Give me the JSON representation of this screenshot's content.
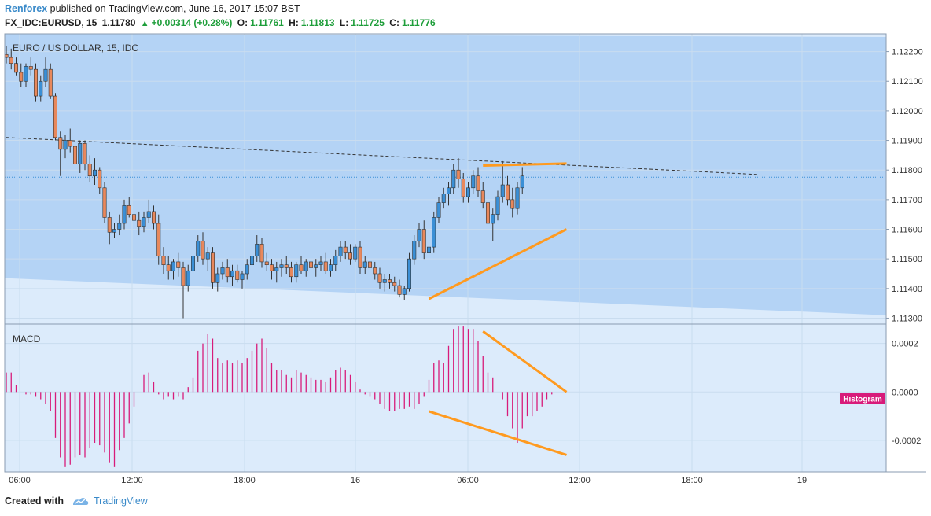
{
  "header": {
    "username": "Renforex",
    "published_text": "published on TradingView.com, June 16, 2017 15:07 BST",
    "symbol": "FX_IDC:EURUSD, 15",
    "last": "1.11780",
    "change": "+0.00314 (+0.28%)",
    "open_label": "O:",
    "open": "1.11761",
    "high_label": "H:",
    "high": "1.11813",
    "low_label": "L:",
    "low": "1.11725",
    "close_label": "C:",
    "close": "1.11776"
  },
  "footer": {
    "created_with": "Created with",
    "brand": "TradingView"
  },
  "colors": {
    "up_candle": "#3a8fd6",
    "down_candle": "#e8885c",
    "wick": "#333333",
    "histogram": "#d81b7a",
    "trendline": "#ff9a1f",
    "channel_fill": "#b4d3f5",
    "background": "#dcebfb"
  },
  "chart_data": [
    {
      "type": "candlestick",
      "title": "EURO / US DOLLAR, 15, IDC",
      "y_axis_ticks": [
        "1.12200",
        "1.12100",
        "1.12000",
        "1.11900",
        "1.11800",
        "1.11700",
        "1.11600",
        "1.11500",
        "1.11400",
        "1.11300"
      ],
      "ylim": [
        1.1128,
        1.1226
      ],
      "x_axis_ticks": [
        "06:00",
        "12:00",
        "18:00",
        "16",
        "06:00",
        "12:00",
        "18:00",
        "19"
      ],
      "current_price": 1.11776,
      "candles": [
        [
          1.1219,
          1.1222,
          1.1216,
          1.1218
        ],
        [
          1.1218,
          1.1221,
          1.1214,
          1.1216
        ],
        [
          1.1216,
          1.1218,
          1.1212,
          1.1213
        ],
        [
          1.1213,
          1.1216,
          1.1208,
          1.121
        ],
        [
          1.121,
          1.1216,
          1.1208,
          1.1215
        ],
        [
          1.1215,
          1.1218,
          1.1212,
          1.1214
        ],
        [
          1.1214,
          1.1216,
          1.1203,
          1.1205
        ],
        [
          1.1205,
          1.1212,
          1.1203,
          1.121
        ],
        [
          1.121,
          1.1218,
          1.1208,
          1.1214
        ],
        [
          1.1214,
          1.1216,
          1.1204,
          1.1205
        ],
        [
          1.1205,
          1.1206,
          1.119,
          1.1191
        ],
        [
          1.1191,
          1.1193,
          1.1178,
          1.1187
        ],
        [
          1.1187,
          1.1192,
          1.1184,
          1.119
        ],
        [
          1.119,
          1.1194,
          1.1186,
          1.1188
        ],
        [
          1.1188,
          1.1192,
          1.118,
          1.1182
        ],
        [
          1.1182,
          1.119,
          1.1179,
          1.1189
        ],
        [
          1.1189,
          1.119,
          1.118,
          1.1182
        ],
        [
          1.1182,
          1.1185,
          1.1176,
          1.1178
        ],
        [
          1.1178,
          1.1184,
          1.1175,
          1.118
        ],
        [
          1.118,
          1.1181,
          1.1172,
          1.1174
        ],
        [
          1.1174,
          1.1176,
          1.1162,
          1.1164
        ],
        [
          1.1164,
          1.1166,
          1.1155,
          1.1159
        ],
        [
          1.1159,
          1.1162,
          1.1157,
          1.116
        ],
        [
          1.116,
          1.1165,
          1.1158,
          1.1162
        ],
        [
          1.1162,
          1.117,
          1.116,
          1.1168
        ],
        [
          1.1168,
          1.1171,
          1.1164,
          1.1165
        ],
        [
          1.1165,
          1.1167,
          1.116,
          1.1163
        ],
        [
          1.1163,
          1.1166,
          1.1158,
          1.1161
        ],
        [
          1.1161,
          1.1166,
          1.1159,
          1.1164
        ],
        [
          1.1164,
          1.117,
          1.1162,
          1.1166
        ],
        [
          1.1166,
          1.1168,
          1.116,
          1.1162
        ],
        [
          1.1162,
          1.1165,
          1.1148,
          1.1151
        ],
        [
          1.1151,
          1.1154,
          1.1145,
          1.1148
        ],
        [
          1.1148,
          1.1151,
          1.1143,
          1.1146
        ],
        [
          1.1146,
          1.115,
          1.1143,
          1.1149
        ],
        [
          1.1149,
          1.1152,
          1.1144,
          1.1147
        ],
        [
          1.1147,
          1.1149,
          1.113,
          1.1141
        ],
        [
          1.1141,
          1.1148,
          1.1139,
          1.1146
        ],
        [
          1.1146,
          1.1153,
          1.1144,
          1.1151
        ],
        [
          1.1151,
          1.1158,
          1.1149,
          1.1156
        ],
        [
          1.1156,
          1.1159,
          1.1148,
          1.115
        ],
        [
          1.115,
          1.1154,
          1.1146,
          1.1152
        ],
        [
          1.1152,
          1.1154,
          1.114,
          1.1142
        ],
        [
          1.1142,
          1.1147,
          1.1139,
          1.1145
        ],
        [
          1.1145,
          1.1149,
          1.1143,
          1.1147
        ],
        [
          1.1147,
          1.115,
          1.1142,
          1.1144
        ],
        [
          1.1144,
          1.1148,
          1.1141,
          1.1146
        ],
        [
          1.1146,
          1.1148,
          1.1142,
          1.1143
        ],
        [
          1.1143,
          1.1146,
          1.114,
          1.1145
        ],
        [
          1.1145,
          1.115,
          1.1143,
          1.1148
        ],
        [
          1.1148,
          1.1153,
          1.1146,
          1.1151
        ],
        [
          1.1151,
          1.1158,
          1.1149,
          1.1155
        ],
        [
          1.1155,
          1.1157,
          1.1147,
          1.1149
        ],
        [
          1.1149,
          1.1152,
          1.1146,
          1.1148
        ],
        [
          1.1148,
          1.115,
          1.1143,
          1.1146
        ],
        [
          1.1146,
          1.1149,
          1.1142,
          1.1147
        ],
        [
          1.1147,
          1.115,
          1.1144,
          1.1148
        ],
        [
          1.1148,
          1.1151,
          1.1145,
          1.1147
        ],
        [
          1.1147,
          1.1149,
          1.1142,
          1.1144
        ],
        [
          1.1144,
          1.1149,
          1.1142,
          1.1148
        ],
        [
          1.1148,
          1.1151,
          1.1145,
          1.1146
        ],
        [
          1.1146,
          1.115,
          1.1144,
          1.1149
        ],
        [
          1.1149,
          1.1152,
          1.1146,
          1.1147
        ],
        [
          1.1147,
          1.115,
          1.1144,
          1.1148
        ],
        [
          1.1148,
          1.1151,
          1.1146,
          1.1149
        ],
        [
          1.1149,
          1.1152,
          1.1145,
          1.1146
        ],
        [
          1.1146,
          1.115,
          1.1144,
          1.1148
        ],
        [
          1.1148,
          1.1153,
          1.1146,
          1.1151
        ],
        [
          1.1151,
          1.1156,
          1.1149,
          1.1154
        ],
        [
          1.1154,
          1.1156,
          1.115,
          1.1152
        ],
        [
          1.1152,
          1.1155,
          1.1148,
          1.115
        ],
        [
          1.115,
          1.1155,
          1.1149,
          1.1154
        ],
        [
          1.1154,
          1.1156,
          1.1145,
          1.1147
        ],
        [
          1.1147,
          1.1151,
          1.1145,
          1.1149
        ],
        [
          1.1149,
          1.1152,
          1.1145,
          1.1147
        ],
        [
          1.1147,
          1.1149,
          1.1143,
          1.1145
        ],
        [
          1.1145,
          1.1147,
          1.114,
          1.1142
        ],
        [
          1.1142,
          1.1145,
          1.1139,
          1.1143
        ],
        [
          1.1143,
          1.1145,
          1.114,
          1.1142
        ],
        [
          1.1142,
          1.1144,
          1.1139,
          1.1141
        ],
        [
          1.1141,
          1.1143,
          1.1137,
          1.1138
        ],
        [
          1.1138,
          1.1141,
          1.1136,
          1.114
        ],
        [
          1.114,
          1.1152,
          1.1139,
          1.115
        ],
        [
          1.115,
          1.1158,
          1.1148,
          1.1156
        ],
        [
          1.1156,
          1.1162,
          1.1154,
          1.116
        ],
        [
          1.116,
          1.1163,
          1.115,
          1.1152
        ],
        [
          1.1152,
          1.1156,
          1.115,
          1.1154
        ],
        [
          1.1154,
          1.1166,
          1.1152,
          1.1164
        ],
        [
          1.1164,
          1.1171,
          1.1162,
          1.1169
        ],
        [
          1.1169,
          1.1174,
          1.1167,
          1.1172
        ],
        [
          1.1172,
          1.1176,
          1.1168,
          1.1174
        ],
        [
          1.1174,
          1.1182,
          1.1172,
          1.118
        ],
        [
          1.118,
          1.1184,
          1.1174,
          1.1177
        ],
        [
          1.1177,
          1.1179,
          1.1169,
          1.1171
        ],
        [
          1.1171,
          1.1176,
          1.1169,
          1.1174
        ],
        [
          1.1174,
          1.118,
          1.1172,
          1.1178
        ],
        [
          1.1178,
          1.1181,
          1.1171,
          1.1173
        ],
        [
          1.1173,
          1.1176,
          1.1167,
          1.1169
        ],
        [
          1.1169,
          1.1171,
          1.116,
          1.1162
        ],
        [
          1.1162,
          1.1167,
          1.1156,
          1.1165
        ],
        [
          1.1165,
          1.1173,
          1.1163,
          1.1171
        ],
        [
          1.1171,
          1.1183,
          1.1169,
          1.1175
        ],
        [
          1.1175,
          1.1178,
          1.1168,
          1.117
        ],
        [
          1.117,
          1.1174,
          1.1164,
          1.1167
        ],
        [
          1.1167,
          1.1176,
          1.1165,
          1.1174
        ],
        [
          1.1174,
          1.1181,
          1.1172,
          1.1178
        ]
      ],
      "resistance_line": [
        [
          0,
          1.1191
        ],
        [
          153,
          1.11785
        ]
      ],
      "annotations": {
        "top_trendline": [
          [
            97,
            1.11815
          ],
          [
            114,
            1.11822
          ]
        ],
        "bottom_trendline": [
          [
            86,
            1.11365
          ],
          [
            114,
            1.116
          ]
        ]
      }
    },
    {
      "type": "bar",
      "title": "MACD",
      "series_label": "Histogram",
      "y_axis_ticks": [
        "0.0002",
        "0.0000",
        "-0.0002"
      ],
      "ylim": [
        -0.00033,
        0.00028
      ],
      "values": [
        8e-05,
        8e-05,
        3e-05,
        0.0,
        -1e-05,
        -1e-05,
        -2e-05,
        -3e-05,
        -5e-05,
        -8e-05,
        -0.00019,
        -0.00027,
        -0.00031,
        -0.0003,
        -0.00027,
        -0.00026,
        -0.00027,
        -0.00023,
        -0.00021,
        -0.00022,
        -0.00025,
        -0.00029,
        -0.00031,
        -0.00024,
        -0.00019,
        -0.00013,
        -6e-05,
        0.0,
        7e-05,
        8e-05,
        4e-05,
        -1e-05,
        -3e-05,
        -2e-05,
        -3e-05,
        -2e-05,
        -3e-05,
        2e-05,
        6e-05,
        0.00017,
        0.0002,
        0.00024,
        0.00022,
        0.00014,
        0.00012,
        0.00013,
        0.00012,
        0.00013,
        0.00012,
        0.00014,
        0.00017,
        0.0002,
        0.00022,
        0.00018,
        0.00012,
        9e-05,
        9e-05,
        7e-05,
        6e-05,
        9e-05,
        8e-05,
        7e-05,
        6e-05,
        5e-05,
        5e-05,
        4e-05,
        6e-05,
        9e-05,
        0.0001,
        9e-05,
        7e-05,
        4e-05,
        1e-05,
        -1e-05,
        -2e-05,
        -3e-05,
        -5e-05,
        -7e-05,
        -8e-05,
        -8e-05,
        -7e-05,
        -7e-05,
        -6e-05,
        -7e-05,
        -5e-05,
        -2e-05,
        5e-05,
        0.00012,
        0.00013,
        0.00012,
        0.00019,
        0.00026,
        0.00027,
        0.00027,
        0.00026,
        0.00026,
        0.00021,
        0.00015,
        8e-05,
        6e-05,
        0.0,
        -3e-05,
        -0.0001,
        -0.00015,
        -0.00021,
        -0.00015,
        -0.0001,
        -0.0001,
        -8e-05,
        -6e-05,
        -3e-05,
        -1e-05
      ],
      "annotations": {
        "top_trendline": [
          [
            97,
            0.00025
          ],
          [
            114,
            0.0
          ]
        ],
        "bottom_trendline": [
          [
            86,
            -8e-05
          ],
          [
            114,
            -0.00026
          ]
        ]
      }
    }
  ]
}
